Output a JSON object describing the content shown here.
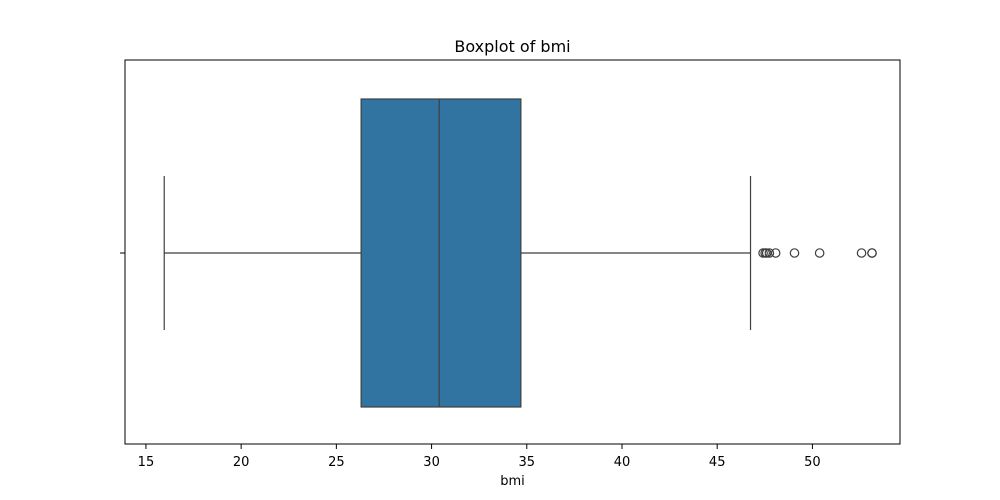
{
  "chart_data": {
    "type": "boxplot",
    "title": "Boxplot of bmi",
    "xlabel": "bmi",
    "ylabel": "",
    "orientation": "horizontal",
    "xlim": [
      13.9,
      54.6
    ],
    "xticks": [
      15,
      20,
      25,
      30,
      35,
      40,
      45,
      50
    ],
    "grid": false,
    "box": {
      "whisker_low": 15.96,
      "q1": 26.3,
      "median": 30.4,
      "q3": 34.69,
      "whisker_high": 46.75
    },
    "outliers": [
      47.41,
      47.52,
      47.6,
      47.74,
      48.07,
      49.06,
      50.38,
      52.58,
      53.13,
      53.13
    ],
    "colors": {
      "box_fill": "#3274a1",
      "line": "#3f3f3f",
      "axis": "#000000",
      "background": "#ffffff"
    }
  }
}
